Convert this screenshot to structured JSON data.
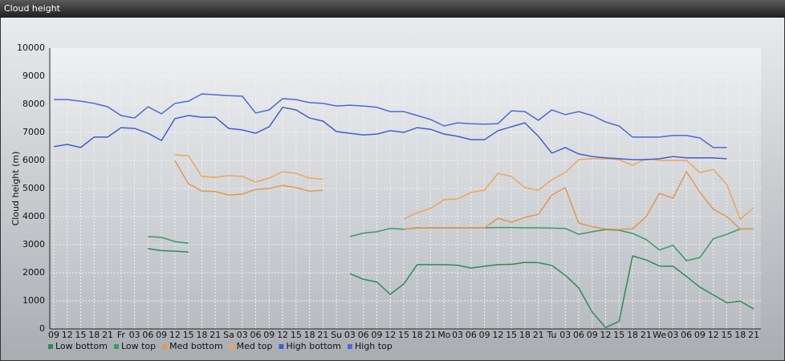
{
  "chart_data": {
    "type": "line",
    "title": "Cloud height",
    "y_label": "Cloud height (m)",
    "categories": [
      "09",
      "12",
      "15",
      "18",
      "21",
      "Fr",
      "03",
      "06",
      "09",
      "12",
      "15",
      "18",
      "21",
      "Sa",
      "03",
      "06",
      "09",
      "12",
      "15",
      "18",
      "21",
      "Su",
      "03",
      "06",
      "09",
      "12",
      "15",
      "18",
      "21",
      "Mo",
      "03",
      "06",
      "09",
      "12",
      "15",
      "18",
      "21",
      "Tu",
      "03",
      "06",
      "09",
      "12",
      "15",
      "18",
      "21",
      "We",
      "03",
      "06",
      "09",
      "12",
      "15",
      "18",
      "21"
    ],
    "ylim": [
      0,
      10000
    ],
    "yticks": [
      0,
      1000,
      2000,
      3000,
      4000,
      5000,
      6000,
      7000,
      8000,
      9000,
      10000
    ],
    "grid": true,
    "series": [
      {
        "name": "Low bottom",
        "color": "#2e8b57",
        "values": [
          null,
          null,
          null,
          null,
          null,
          null,
          null,
          2860,
          2790,
          2770,
          2740,
          null,
          null,
          null,
          null,
          null,
          null,
          null,
          null,
          null,
          null,
          null,
          1970,
          1770,
          1670,
          1230,
          1600,
          2290,
          2290,
          2290,
          2270,
          2170,
          2230,
          2290,
          2300,
          2370,
          2360,
          2260,
          1910,
          1460,
          600,
          50,
          270,
          2600,
          2460,
          2240,
          2230,
          1870,
          1490,
          1210,
          930,
          990,
          710
        ]
      },
      {
        "name": "Low top",
        "color": "#3a9a62",
        "values": [
          null,
          null,
          null,
          null,
          null,
          null,
          null,
          3290,
          3260,
          3110,
          3050,
          null,
          null,
          null,
          null,
          null,
          null,
          null,
          null,
          null,
          null,
          null,
          3290,
          3410,
          3460,
          3580,
          3550,
          3600,
          3600,
          3600,
          3600,
          3600,
          3600,
          3610,
          3610,
          3600,
          3600,
          3590,
          3580,
          3370,
          3460,
          3540,
          3510,
          3400,
          3190,
          2810,
          2980,
          2430,
          2540,
          3210,
          3370,
          3560,
          3560
        ]
      },
      {
        "name": "Med bottom",
        "color": "#e8954a",
        "values": [
          null,
          null,
          null,
          null,
          null,
          null,
          null,
          null,
          null,
          5990,
          5170,
          4910,
          4890,
          4770,
          4800,
          4970,
          5000,
          5110,
          5030,
          4910,
          4940,
          null,
          null,
          null,
          null,
          null,
          3560,
          3590,
          3600,
          3600,
          3600,
          3600,
          3600,
          3940,
          3800,
          3970,
          4080,
          4770,
          5030,
          3770,
          3640,
          3560,
          3540,
          3570,
          3990,
          4830,
          4660,
          5600,
          4870,
          4260,
          4000,
          3560,
          3560
        ]
      },
      {
        "name": "Med top",
        "color": "#f0a458",
        "values": [
          null,
          null,
          null,
          null,
          null,
          null,
          null,
          null,
          null,
          6200,
          6170,
          5430,
          5400,
          5460,
          5430,
          5230,
          5370,
          5600,
          5540,
          5370,
          5340,
          null,
          null,
          null,
          null,
          null,
          3910,
          4140,
          4290,
          4600,
          4630,
          4860,
          4940,
          5540,
          5430,
          5030,
          4940,
          5310,
          5570,
          6030,
          6060,
          6060,
          6030,
          5830,
          6060,
          6000,
          6000,
          6000,
          5570,
          5680,
          5140,
          3910,
          4310
        ]
      },
      {
        "name": "High bottom",
        "color": "#3f5fd0",
        "values": [
          6490,
          6570,
          6460,
          6830,
          6830,
          7170,
          7140,
          6970,
          6710,
          7490,
          7600,
          7540,
          7540,
          7140,
          7090,
          6970,
          7200,
          7890,
          7800,
          7510,
          7400,
          7030,
          6970,
          6910,
          6940,
          7060,
          7000,
          7170,
          7110,
          6940,
          6860,
          6740,
          6740,
          7060,
          7200,
          7340,
          6860,
          6260,
          6460,
          6230,
          6140,
          6090,
          6060,
          6030,
          6030,
          6060,
          6140,
          6090,
          6090,
          6090,
          6060,
          null,
          null
        ]
      },
      {
        "name": "High top",
        "color": "#4a6bd8",
        "values": [
          8170,
          8170,
          8110,
          8030,
          7910,
          7600,
          7510,
          7910,
          7660,
          8030,
          8110,
          8370,
          8340,
          8310,
          8290,
          7690,
          7800,
          8200,
          8170,
          8060,
          8030,
          7940,
          7970,
          7940,
          7890,
          7740,
          7740,
          7600,
          7460,
          7230,
          7340,
          7310,
          7290,
          7310,
          7770,
          7740,
          7430,
          7800,
          7630,
          7740,
          7600,
          7370,
          7230,
          6830,
          6830,
          6830,
          6890,
          6890,
          6800,
          6460,
          6460,
          null,
          null
        ]
      }
    ]
  }
}
